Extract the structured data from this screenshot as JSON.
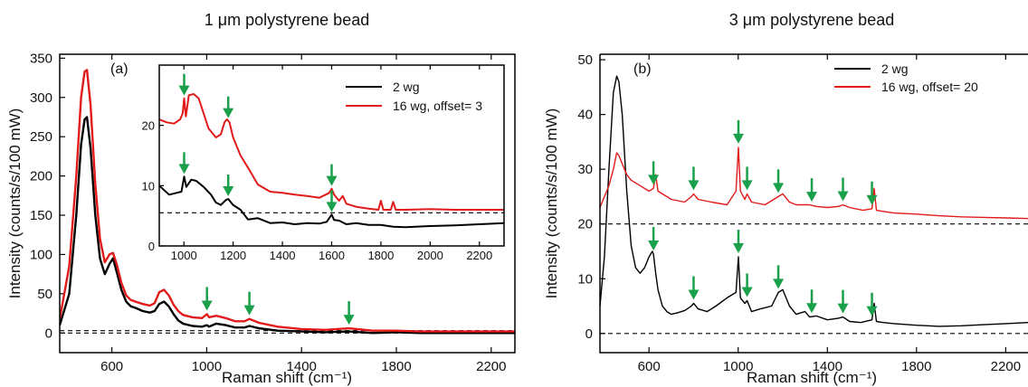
{
  "colors": {
    "black_series": "#000000",
    "red_series": "#e11a1a",
    "arrow": "#1aa04a"
  },
  "chart_data": [
    {
      "type": "line",
      "title": "1 μm polystyrene bead",
      "panel_label": "(a)",
      "xlabel": "Raman shift (cm⁻¹)",
      "ylabel": "Intensity (counts/s/100 mW)",
      "xlim": [
        380,
        2300
      ],
      "ylim": [
        -25,
        355
      ],
      "xticks": [
        "600",
        "1000",
        "1400",
        "1800",
        "2200"
      ],
      "yticks": [
        "0",
        "50",
        "100",
        "150",
        "200",
        "250",
        "300",
        "350"
      ],
      "series": [
        {
          "name": "2 wg",
          "color": "#000000",
          "x": [
            380,
            420,
            450,
            470,
            485,
            495,
            510,
            530,
            550,
            570,
            590,
            605,
            620,
            640,
            660,
            680,
            700,
            730,
            760,
            780,
            800,
            820,
            840,
            860,
            880,
            900,
            940,
            980,
            1001,
            1010,
            1040,
            1080,
            1120,
            1160,
            1180,
            1220,
            1300,
            1400,
            1500,
            1600,
            1700,
            1800,
            1900,
            2000,
            2100,
            2200,
            2300
          ],
          "y": [
            10,
            50,
            150,
            240,
            272,
            275,
            235,
            150,
            95,
            75,
            88,
            95,
            78,
            55,
            40,
            34,
            32,
            28,
            26,
            28,
            37,
            40,
            34,
            24,
            16,
            12,
            9,
            8,
            10,
            8,
            12,
            10,
            7,
            7,
            9,
            6,
            3,
            2,
            1,
            2,
            0,
            1,
            0,
            0,
            0,
            0,
            0
          ]
        },
        {
          "name": "16 wg, offset= 3",
          "color": "#e11a1a",
          "x": [
            380,
            420,
            450,
            470,
            485,
            495,
            510,
            530,
            550,
            570,
            590,
            605,
            620,
            640,
            660,
            680,
            700,
            730,
            760,
            780,
            800,
            820,
            840,
            860,
            880,
            900,
            940,
            980,
            1001,
            1010,
            1040,
            1080,
            1120,
            1160,
            1180,
            1220,
            1300,
            1400,
            1500,
            1600,
            1700,
            1800,
            1900,
            2000,
            2100,
            2200,
            2300
          ],
          "y": [
            18,
            85,
            200,
            300,
            333,
            335,
            290,
            190,
            120,
            90,
            100,
            102,
            88,
            64,
            48,
            42,
            40,
            37,
            35,
            38,
            52,
            55,
            48,
            36,
            28,
            23,
            20,
            19,
            24,
            20,
            22,
            19,
            15,
            15,
            18,
            13,
            8,
            5,
            4,
            6,
            3,
            3,
            2,
            2,
            2,
            2,
            2
          ]
        }
      ],
      "reference_lines": [
        0,
        3
      ],
      "arrow_positions_x": [
        1001,
        1180,
        1600
      ],
      "inset": {
        "xlim": [
          900,
          2300
        ],
        "ylim": [
          0,
          30
        ],
        "xticks": [
          "1000",
          "1200",
          "1400",
          "1600",
          "1800",
          "2000",
          "2200"
        ],
        "yticks": [
          "0",
          "10",
          "20"
        ],
        "reference_line": 5.5,
        "arrow_positions_x": [
          1001,
          1180,
          1600
        ],
        "series": [
          {
            "name": "2 wg",
            "x": [
              900,
              940,
              970,
              990,
              1001,
              1010,
              1030,
              1050,
              1080,
              1110,
              1130,
              1150,
              1170,
              1180,
              1200,
              1230,
              1260,
              1300,
              1350,
              1400,
              1450,
              1500,
              1550,
              1580,
              1600,
              1610,
              1630,
              1660,
              1700,
              1750,
              1800,
              1850,
              1900,
              2000,
              2100,
              2200,
              2300
            ],
            "y": [
              10,
              8.5,
              8.8,
              9,
              11.5,
              9.8,
              11,
              10.8,
              9.8,
              8.5,
              7.2,
              6.8,
              7.6,
              7.8,
              6.8,
              6,
              4.4,
              4.6,
              3.8,
              3.9,
              3.6,
              3.8,
              3.7,
              4,
              5.2,
              4.3,
              4.2,
              3.6,
              3.8,
              3.5,
              3.5,
              3.2,
              3.1,
              3.3,
              3.4,
              3.6,
              3.8
            ]
          },
          {
            "name": "16 wg, offset= 3",
            "x": [
              900,
              930,
              960,
              985,
              995,
              1001,
              1008,
              1020,
              1040,
              1060,
              1080,
              1100,
              1130,
              1150,
              1165,
              1175,
              1185,
              1200,
              1230,
              1260,
              1300,
              1350,
              1400,
              1450,
              1500,
              1550,
              1590,
              1600,
              1610,
              1630,
              1645,
              1660,
              1700,
              1750,
              1790,
              1800,
              1810,
              1840,
              1850,
              1860,
              1900,
              2000,
              2100,
              2200,
              2300
            ],
            "y": [
              21,
              20.5,
              20.3,
              21,
              22,
              24.5,
              21.5,
              25,
              25.2,
              24.5,
              22,
              19.5,
              18,
              18.5,
              20.5,
              21,
              20.5,
              18,
              15,
              13,
              10.2,
              9,
              8.8,
              8.5,
              8.3,
              8,
              8.8,
              9.5,
              8.5,
              7.5,
              8.3,
              7,
              6.5,
              6.2,
              6,
              7.5,
              6,
              6,
              7.3,
              6,
              6,
              6.1,
              6,
              6,
              6
            ]
          }
        ]
      }
    },
    {
      "type": "line",
      "title": "3 μm polystyrene bead",
      "panel_label": "(b)",
      "xlabel": "Raman shift (cm⁻¹)",
      "ylabel": "Intensity (counts/s/100 mW)",
      "xlim": [
        380,
        2300
      ],
      "ylim": [
        -3.5,
        51
      ],
      "xticks": [
        "600",
        "1000",
        "1400",
        "1800",
        "2200"
      ],
      "yticks": [
        "0",
        "10",
        "20",
        "30",
        "40",
        "50"
      ],
      "series": [
        {
          "name": "2 wg",
          "color": "#000000",
          "x": [
            380,
            400,
            420,
            440,
            455,
            465,
            480,
            500,
            520,
            540,
            560,
            580,
            600,
            615,
            620,
            630,
            640,
            660,
            680,
            700,
            730,
            760,
            790,
            800,
            820,
            860,
            900,
            950,
            990,
            1001,
            1010,
            1030,
            1040,
            1060,
            1100,
            1150,
            1180,
            1200,
            1230,
            1260,
            1300,
            1320,
            1350,
            1400,
            1450,
            1470,
            1500,
            1550,
            1600,
            1610,
            1620,
            1650,
            1700,
            1800,
            1900,
            2000,
            2100,
            2200,
            2300
          ],
          "y": [
            5,
            14,
            30,
            44,
            47,
            46,
            40,
            26,
            16,
            12,
            11,
            12,
            14,
            15,
            14.5,
            11,
            8,
            5,
            4,
            3.5,
            3.8,
            4.2,
            5,
            5.5,
            4.5,
            4,
            5,
            6.5,
            7.5,
            14,
            6.5,
            5.5,
            6,
            4,
            4.5,
            5,
            7.5,
            8,
            5,
            3.5,
            4,
            3,
            3.2,
            2.5,
            2.8,
            3,
            2.2,
            2,
            2.5,
            5.5,
            2.2,
            2,
            1.8,
            1.5,
            1.3,
            1.4,
            1.6,
            1.8,
            2
          ]
        },
        {
          "name": "16 wg, offset= 20",
          "color": "#e11a1a",
          "x": [
            380,
            420,
            440,
            455,
            465,
            480,
            500,
            520,
            560,
            600,
            620,
            630,
            640,
            700,
            760,
            790,
            800,
            820,
            880,
            950,
            990,
            1001,
            1010,
            1030,
            1040,
            1060,
            1120,
            1180,
            1200,
            1230,
            1260,
            1320,
            1350,
            1400,
            1450,
            1470,
            1500,
            1560,
            1600,
            1610,
            1620,
            1650,
            1700,
            1800,
            1900,
            2000,
            2100,
            2200,
            2300
          ],
          "y": [
            23,
            27,
            30,
            33,
            32.5,
            31,
            29,
            28,
            27,
            26,
            26.5,
            29,
            26,
            24.5,
            24,
            25,
            25.5,
            24.5,
            24,
            23.5,
            26,
            34,
            26,
            24.5,
            25.5,
            24,
            23.5,
            25,
            25.5,
            24,
            23.5,
            23.5,
            23.2,
            23,
            23.2,
            23.5,
            23,
            22.5,
            22.8,
            26.5,
            22.5,
            22.3,
            22,
            21.8,
            21.5,
            21.3,
            21.2,
            21.1,
            21
          ]
        }
      ],
      "reference_lines": [
        0,
        20
      ],
      "arrow_positions_x": [
        620,
        800,
        1001,
        1040,
        1180,
        1330,
        1470,
        1600
      ]
    }
  ]
}
